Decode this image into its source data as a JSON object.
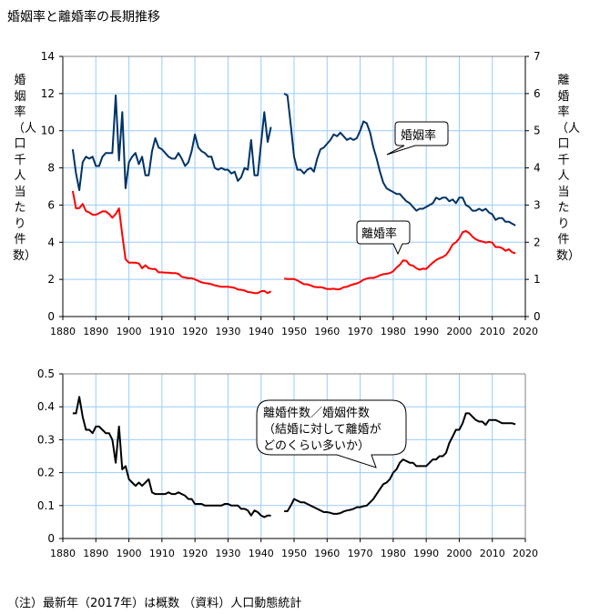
{
  "title": "婚姻率と離婚率の長期推移",
  "note": "（注）最新年（2017年）は概数 （資料）人口動態統計",
  "colors": {
    "marriage": "#003366",
    "divorce": "#ff0000",
    "ratio": "#000000",
    "grid": "#99ccff"
  },
  "chart_data": [
    {
      "type": "line",
      "left_ylabel": "婚姻率（人口千人当たり件数）",
      "right_ylabel": "離婚率（人口千人当たり件数）",
      "xlim": [
        1880,
        2020
      ],
      "xticks": [
        1880,
        1890,
        1900,
        1910,
        1920,
        1930,
        1940,
        1950,
        1960,
        1970,
        1980,
        1990,
        2000,
        2010,
        2020
      ],
      "left_ylim": [
        0,
        14
      ],
      "left_yticks": [
        0,
        2,
        4,
        6,
        8,
        10,
        12,
        14
      ],
      "right_ylim": [
        0,
        7
      ],
      "right_yticks": [
        0,
        1,
        2,
        3,
        4,
        5,
        6,
        7
      ],
      "grid": true,
      "x_start": 1883,
      "series": [
        {
          "name": "婚姻率",
          "axis": "left",
          "color": "#003366",
          "values": [
            9.0,
            7.7,
            6.8,
            8.3,
            8.6,
            8.5,
            8.6,
            8.1,
            8.1,
            8.6,
            8.8,
            8.8,
            8.8,
            11.9,
            8.4,
            11.0,
            6.9,
            8.3,
            8.6,
            8.8,
            8.2,
            8.6,
            7.6,
            7.6,
            8.9,
            9.6,
            9.1,
            9.0,
            8.8,
            8.6,
            8.5,
            8.5,
            8.8,
            8.5,
            8.1,
            8.3,
            8.9,
            9.8,
            9.1,
            8.9,
            8.8,
            8.6,
            8.6,
            8.0,
            7.9,
            8.0,
            7.9,
            7.9,
            7.7,
            7.8,
            7.3,
            7.5,
            8.0,
            7.9,
            9.5,
            7.6,
            7.6,
            9.3,
            11.0,
            9.4,
            10.2,
            null,
            null,
            null,
            12.0,
            11.9,
            10.3,
            8.6,
            7.9,
            7.9,
            7.7,
            7.9,
            8.0,
            7.8,
            8.5,
            9.0,
            9.1,
            9.3,
            9.5,
            9.8,
            9.7,
            9.9,
            9.7,
            9.5,
            9.6,
            9.5,
            9.6,
            10.0,
            10.5,
            10.4,
            9.9,
            9.1,
            8.5,
            7.8,
            7.2,
            6.9,
            6.8,
            6.7,
            6.6,
            6.6,
            6.4,
            6.2,
            6.1,
            5.9,
            5.7,
            5.8,
            5.8,
            5.9,
            6.0,
            6.1,
            6.4,
            6.3,
            6.4,
            6.4,
            6.2,
            6.3,
            6.1,
            6.4,
            6.4,
            6.0,
            5.9,
            5.7,
            5.7,
            5.8,
            5.7,
            5.8,
            5.6,
            5.5,
            5.2,
            5.3,
            5.3,
            5.1,
            5.1,
            5.0,
            4.9
          ]
        },
        {
          "name": "離婚率",
          "axis": "right",
          "color": "#ff0000",
          "values": [
            3.38,
            2.91,
            2.92,
            3.03,
            2.84,
            2.8,
            2.74,
            2.74,
            2.78,
            2.83,
            2.83,
            2.76,
            2.66,
            2.76,
            2.91,
            2.2,
            1.54,
            1.45,
            1.45,
            1.45,
            1.43,
            1.3,
            1.38,
            1.3,
            1.28,
            1.28,
            1.19,
            1.19,
            1.18,
            1.18,
            1.17,
            1.17,
            1.15,
            1.07,
            1.05,
            1.03,
            1.03,
            1.0,
            0.96,
            0.92,
            0.9,
            0.89,
            0.87,
            0.84,
            0.82,
            0.8,
            0.8,
            0.8,
            0.79,
            0.77,
            0.73,
            0.72,
            0.7,
            0.66,
            0.65,
            0.63,
            0.63,
            0.68,
            0.69,
            0.63,
            0.68,
            null,
            null,
            null,
            1.02,
            1.01,
            1.01,
            1.01,
            0.97,
            0.92,
            0.87,
            0.87,
            0.84,
            0.8,
            0.79,
            0.79,
            0.77,
            0.74,
            0.74,
            0.75,
            0.73,
            0.74,
            0.79,
            0.8,
            0.84,
            0.87,
            0.89,
            0.93,
            0.99,
            1.02,
            1.04,
            1.04,
            1.07,
            1.11,
            1.14,
            1.15,
            1.17,
            1.22,
            1.32,
            1.39,
            1.51,
            1.5,
            1.39,
            1.37,
            1.3,
            1.26,
            1.29,
            1.28,
            1.37,
            1.45,
            1.52,
            1.57,
            1.6,
            1.66,
            1.78,
            1.94,
            2.0,
            2.1,
            2.27,
            2.3,
            2.25,
            2.15,
            2.08,
            2.04,
            2.02,
            1.99,
            2.01,
            1.99,
            1.87,
            1.87,
            1.84,
            1.77,
            1.81,
            1.73,
            1.7
          ]
        }
      ],
      "annotations": [
        "婚姻率",
        "離婚率"
      ]
    },
    {
      "type": "line",
      "xlim": [
        1880,
        2020
      ],
      "xticks": [
        1880,
        1890,
        1900,
        1910,
        1920,
        1930,
        1940,
        1950,
        1960,
        1970,
        1980,
        1990,
        2000,
        2010,
        2020
      ],
      "ylim": [
        0,
        0.5
      ],
      "yticks": [
        0,
        0.1,
        0.2,
        0.3,
        0.4,
        0.5
      ],
      "grid": true,
      "x_start": 1883,
      "series": [
        {
          "color": "#000000",
          "values": [
            0.38,
            0.38,
            0.43,
            0.37,
            0.33,
            0.33,
            0.32,
            0.34,
            0.34,
            0.33,
            0.32,
            0.32,
            0.3,
            0.23,
            0.34,
            0.21,
            0.22,
            0.18,
            0.17,
            0.16,
            0.17,
            0.16,
            0.17,
            0.18,
            0.14,
            0.135,
            0.135,
            0.135,
            0.135,
            0.14,
            0.135,
            0.135,
            0.14,
            0.135,
            0.13,
            0.12,
            0.12,
            0.105,
            0.105,
            0.105,
            0.1,
            0.1,
            0.1,
            0.1,
            0.1,
            0.1,
            0.105,
            0.105,
            0.1,
            0.1,
            0.1,
            0.09,
            0.09,
            0.085,
            0.07,
            0.085,
            0.08,
            0.07,
            0.065,
            0.07,
            0.07,
            null,
            null,
            null,
            0.083,
            0.083,
            0.1,
            0.12,
            0.115,
            0.11,
            0.11,
            0.105,
            0.1,
            0.095,
            0.09,
            0.085,
            0.08,
            0.08,
            0.078,
            0.075,
            0.075,
            0.077,
            0.082,
            0.085,
            0.087,
            0.09,
            0.095,
            0.095,
            0.098,
            0.1,
            0.11,
            0.12,
            0.135,
            0.15,
            0.165,
            0.17,
            0.18,
            0.2,
            0.21,
            0.23,
            0.24,
            0.235,
            0.23,
            0.23,
            0.22,
            0.22,
            0.22,
            0.22,
            0.23,
            0.24,
            0.24,
            0.25,
            0.25,
            0.26,
            0.29,
            0.31,
            0.33,
            0.33,
            0.35,
            0.38,
            0.38,
            0.37,
            0.36,
            0.355,
            0.355,
            0.345,
            0.36,
            0.36,
            0.36,
            0.355,
            0.35,
            0.35,
            0.35,
            0.35,
            0.347
          ]
        }
      ],
      "annotation": [
        "離婚件数／婚姻件数",
        "（結婚に対して離婚が",
        "どのくらい多いか）"
      ]
    }
  ]
}
